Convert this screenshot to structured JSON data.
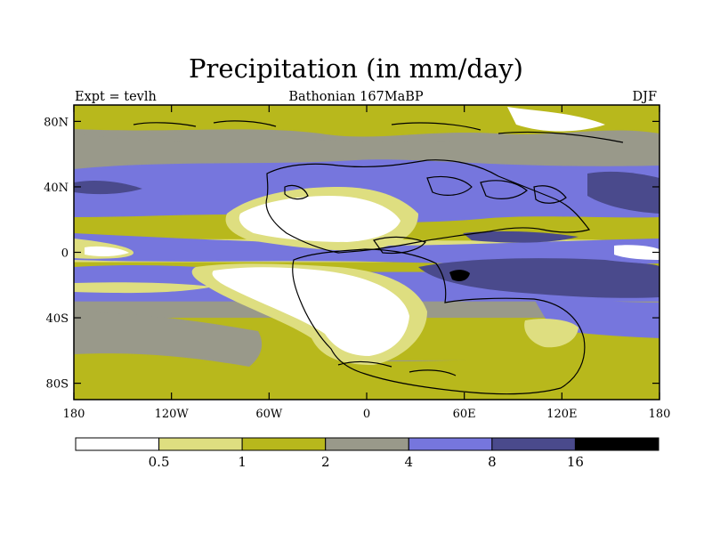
{
  "title": "Precipitation (in mm/day)",
  "subtitle_left": "Expt = tevlh",
  "subtitle_center": "Bathonian 167MaBP",
  "subtitle_right": "DJF",
  "x_ticks": [
    {
      "label": "180",
      "lon": -180
    },
    {
      "label": "120W",
      "lon": -120
    },
    {
      "label": "60W",
      "lon": -60
    },
    {
      "label": "0",
      "lon": 0
    },
    {
      "label": "60E",
      "lon": 60
    },
    {
      "label": "120E",
      "lon": 120
    },
    {
      "label": "180",
      "lon": 180
    }
  ],
  "y_ticks": [
    {
      "label": "80N",
      "lat": 80
    },
    {
      "label": "40N",
      "lat": 40
    },
    {
      "label": "0",
      "lat": 0
    },
    {
      "label": "40S",
      "lat": -40
    },
    {
      "label": "80S",
      "lat": -80
    }
  ],
  "colorbar": {
    "colors": [
      "#ffffff",
      "#dede80",
      "#b8b81c",
      "#99998a",
      "#7676dd",
      "#4a4a8c",
      "#000000"
    ],
    "labels": [
      "0.5",
      "1",
      "2",
      "4",
      "8",
      "16"
    ]
  },
  "map": {
    "ocean_base": "#99998a",
    "bands": [
      {
        "fill": "#b8b81c",
        "lat_top": 90,
        "lat_bottom": 76
      },
      {
        "fill": "#7676dd",
        "lat_top": 56,
        "lat_bottom": 30
      },
      {
        "fill": "#b8b81c",
        "lat_top": 30,
        "lat_bottom": 6
      },
      {
        "fill": "#dede80",
        "lat_top": 8,
        "lat_bottom": -6
      },
      {
        "fill": "#b8b81c",
        "lat_top": -6,
        "lat_bottom": -28
      },
      {
        "fill": "#7676dd",
        "lat_top": -12,
        "lat_bottom": -30
      },
      {
        "fill": "#b8b81c",
        "lat_top": -40,
        "lat_bottom": -66
      }
    ]
  }
}
